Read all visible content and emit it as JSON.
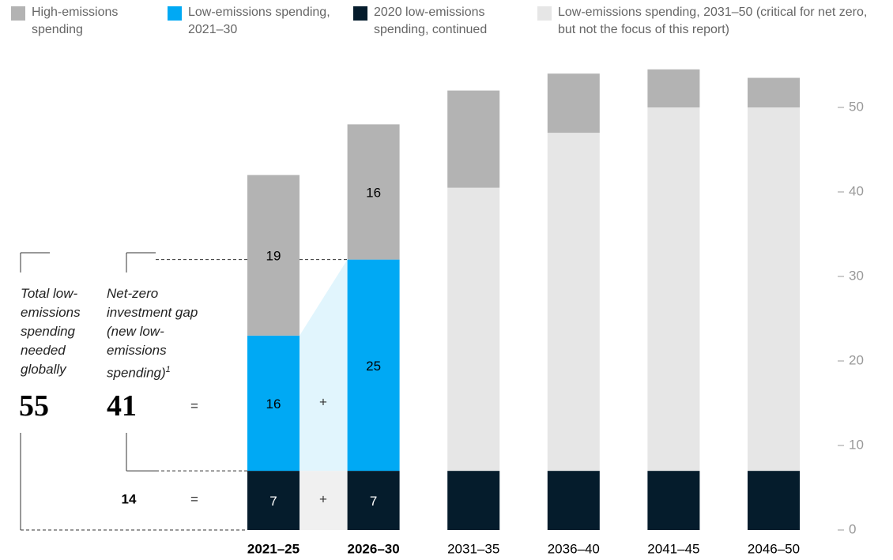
{
  "chart_data": {
    "type": "stacked_bar",
    "categories": [
      "2021–25",
      "2026–30",
      "2031–35",
      "2036–40",
      "2041–45",
      "2046–50"
    ],
    "series": [
      {
        "name": "High-emissions spending",
        "color": "#b3b3b3",
        "values": [
          19,
          16,
          11.5,
          7,
          4.5,
          3.5
        ],
        "value_labels": [
          "19",
          "16",
          null,
          null,
          null,
          null
        ]
      },
      {
        "name": "Low-emissions spending, 2021–30",
        "color": "#00a9f4",
        "values": [
          16,
          25,
          null,
          null,
          null,
          null
        ],
        "value_labels": [
          "16",
          "25",
          null,
          null,
          null,
          null
        ]
      },
      {
        "name": "2020 low-emissions spending, continued",
        "color": "#051c2c",
        "values": [
          7,
          7,
          7,
          7,
          7,
          7
        ],
        "value_labels": [
          "7",
          "7",
          null,
          null,
          null,
          null
        ]
      },
      {
        "name": "Low-emissions spending, 2031–50 (critical for net zero, but not the focus of this report)",
        "color": "#e6e6e6",
        "values": [
          null,
          null,
          33.5,
          40,
          43,
          43
        ]
      }
    ],
    "ylim": [
      0,
      55
    ],
    "yticks": [
      0,
      10,
      20,
      30,
      40,
      50
    ],
    "annotations": {
      "total_label": "Total low-emissions spending needed globally",
      "total_value": "55",
      "gap_label": "Net-zero investment gap (new low-emissions spending)",
      "gap_footnote": "1",
      "gap_value": "41",
      "base_value": "14",
      "equals": "=",
      "plus": "+"
    }
  }
}
